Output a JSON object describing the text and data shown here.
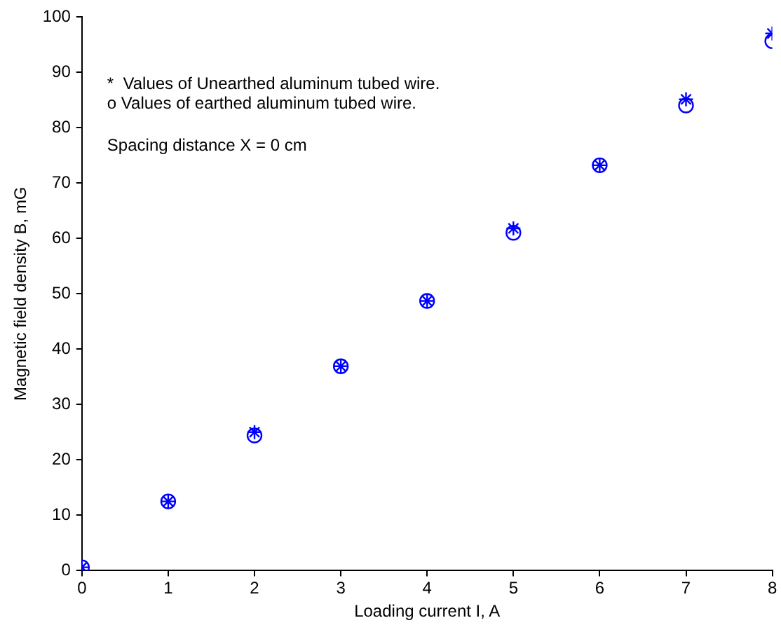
{
  "chart_data": {
    "type": "scatter",
    "xlabel": "Loading current I, A",
    "ylabel": "Magnetic field density B, mG",
    "x": [
      0,
      1,
      2,
      3,
      4,
      5,
      6,
      7,
      8
    ],
    "series": [
      {
        "color": "#0000ff",
        "marker": "cross",
        "values": [
          0.6,
          12.5,
          25.0,
          36.9,
          48.7,
          61.8,
          73.2,
          85.1,
          97.0
        ]
      },
      {
        "color": "#0000ff",
        "marker": "circle",
        "values": [
          0.6,
          12.5,
          24.4,
          36.9,
          48.7,
          61.0,
          73.2,
          84.0,
          95.6
        ]
      }
    ],
    "xlim": [
      0,
      8
    ],
    "xticks": [
      0,
      1,
      2,
      3,
      4,
      5,
      6,
      7,
      8
    ],
    "ylim": [
      0,
      100
    ],
    "yticks": [
      0,
      10,
      20,
      30,
      40,
      50,
      60,
      70,
      80,
      90,
      100
    ],
    "grid": false,
    "legend": false,
    "annotations": [
      "*  Values of Unearthed aluminum tubed wire.",
      "o Values of earthed aluminum tubed wire.",
      "Spacing distance X = 0 cm"
    ]
  }
}
